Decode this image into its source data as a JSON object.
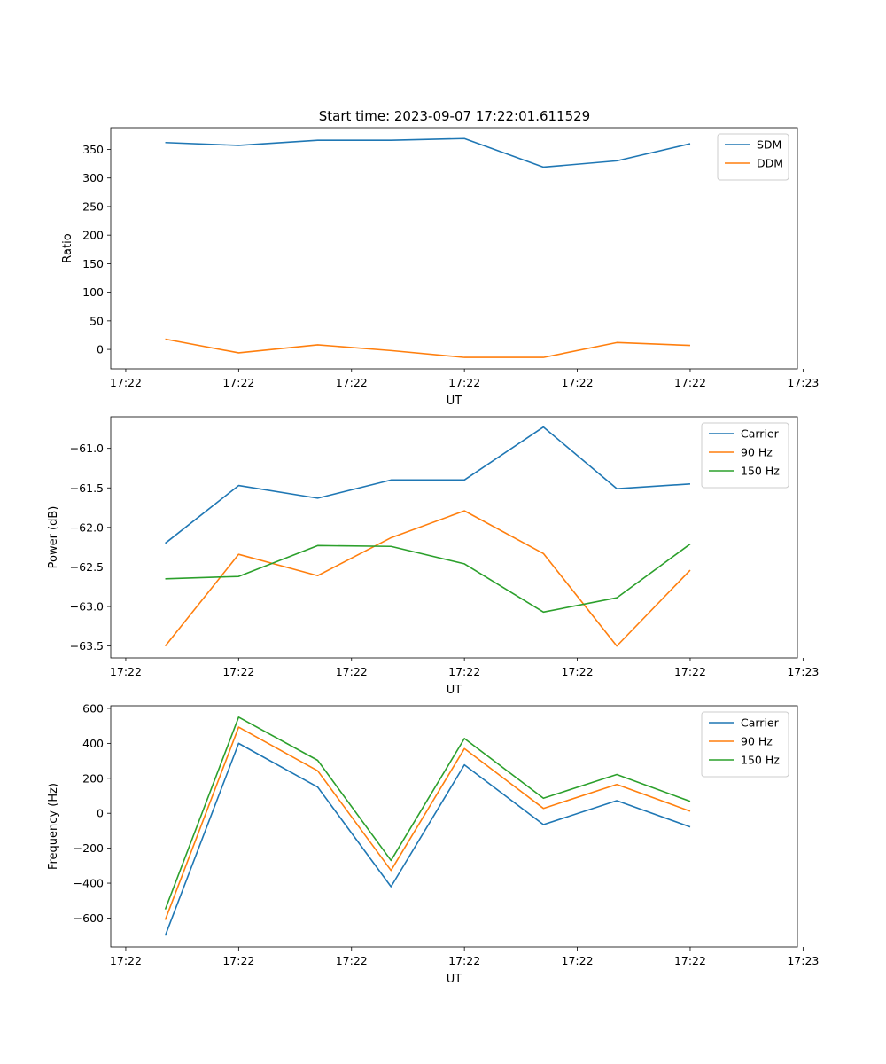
{
  "figure_title": "Start time: 2023-09-07 17:22:01.611529",
  "colors": {
    "blue": "#1f77b4",
    "orange": "#ff7f0e",
    "green": "#2ca02c"
  },
  "chart_data": [
    {
      "type": "line",
      "title": "Start time: 2023-09-07 17:22:01.611529",
      "xlabel": "UT",
      "ylabel": "Ratio",
      "x_tick_labels": [
        "17:22",
        "17:22",
        "17:22",
        "17:22",
        "17:22",
        "17:22",
        "17:23"
      ],
      "x_range": [
        -0.133,
        5.95
      ],
      "x": [
        0.35,
        1.0,
        1.7,
        2.35,
        3.0,
        3.7,
        4.35,
        5.0
      ],
      "ylim": [
        -34,
        388
      ],
      "yticks": [
        0,
        50,
        100,
        150,
        200,
        250,
        300,
        350
      ],
      "legend": "top-right",
      "series": [
        {
          "name": "SDM",
          "color": "#1f77b4",
          "values": [
            362,
            357,
            366,
            366,
            369,
            319,
            330,
            360
          ]
        },
        {
          "name": "DDM",
          "color": "#ff7f0e",
          "values": [
            18,
            -6,
            8,
            -2,
            -14,
            -14,
            12,
            7
          ]
        }
      ]
    },
    {
      "type": "line",
      "title": "",
      "xlabel": "UT",
      "ylabel": "Power (dB)",
      "x_tick_labels": [
        "17:22",
        "17:22",
        "17:22",
        "17:22",
        "17:22",
        "17:22",
        "17:23"
      ],
      "x_range": [
        -0.133,
        5.95
      ],
      "x": [
        0.35,
        1.0,
        1.7,
        2.35,
        3.0,
        3.7,
        4.35,
        5.0
      ],
      "ylim": [
        -63.65,
        -60.6
      ],
      "yticks": [
        -63.5,
        -63.0,
        -62.5,
        -62.0,
        -61.5,
        -61.0
      ],
      "ytick_labels": [
        "−63.5",
        "−63.0",
        "−62.5",
        "−62.0",
        "−61.5",
        "−61.0"
      ],
      "legend": "top-right",
      "series": [
        {
          "name": "Carrier",
          "color": "#1f77b4",
          "values": [
            -62.2,
            -61.47,
            -61.63,
            -61.4,
            -61.4,
            -60.73,
            -61.51,
            -61.45
          ]
        },
        {
          "name": "90 Hz",
          "color": "#ff7f0e",
          "values": [
            -63.5,
            -62.34,
            -62.61,
            -62.13,
            -61.79,
            -62.33,
            -63.5,
            -62.54
          ]
        },
        {
          "name": "150 Hz",
          "color": "#2ca02c",
          "values": [
            -62.65,
            -62.62,
            -62.23,
            -62.24,
            -62.46,
            -63.07,
            -62.89,
            -62.21
          ]
        }
      ]
    },
    {
      "type": "line",
      "title": "",
      "xlabel": "UT",
      "ylabel": "Frequency (Hz)",
      "x_tick_labels": [
        "17:22",
        "17:22",
        "17:22",
        "17:22",
        "17:22",
        "17:22",
        "17:23"
      ],
      "x_range": [
        -0.133,
        5.95
      ],
      "x": [
        0.35,
        1.0,
        1.7,
        2.35,
        3.0,
        3.7,
        4.35,
        5.0
      ],
      "ylim": [
        -765,
        615
      ],
      "yticks": [
        -600,
        -400,
        -200,
        0,
        200,
        400,
        600
      ],
      "ytick_labels": [
        "−600",
        "−400",
        "−200",
        "0",
        "200",
        "400",
        "600"
      ],
      "legend": "top-right",
      "series": [
        {
          "name": "Carrier",
          "color": "#1f77b4",
          "values": [
            -700,
            400,
            150,
            -420,
            277,
            -65,
            72,
            -78
          ]
        },
        {
          "name": "90 Hz",
          "color": "#ff7f0e",
          "values": [
            -610,
            493,
            243,
            -327,
            370,
            28,
            165,
            12
          ]
        },
        {
          "name": "150 Hz",
          "color": "#2ca02c",
          "values": [
            -550,
            550,
            303,
            -270,
            428,
            86,
            222,
            68
          ]
        }
      ]
    }
  ]
}
